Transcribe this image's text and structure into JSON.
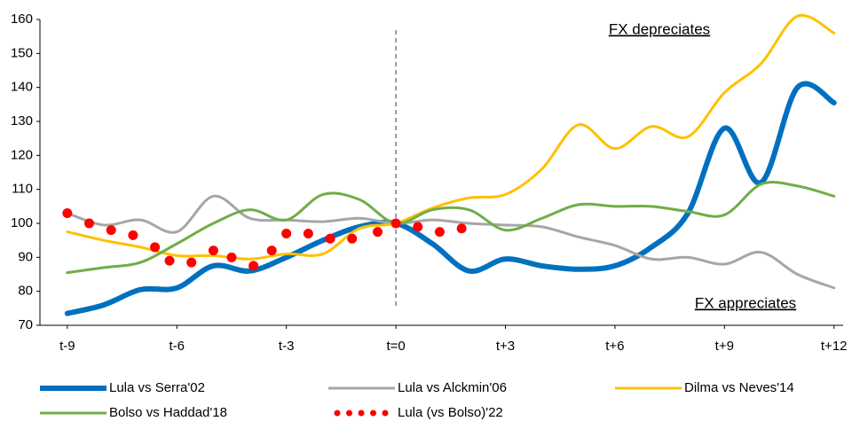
{
  "chart_data": {
    "type": "line",
    "x": [
      -9,
      -8,
      -7,
      -6,
      -5,
      -4,
      -3,
      -2,
      -1,
      0,
      1,
      2,
      3,
      4,
      5,
      6,
      7,
      8,
      9,
      10,
      11,
      12
    ],
    "xlim": [
      -9.75,
      12.25
    ],
    "xticks": [
      {
        "value": -9,
        "label": "t-9"
      },
      {
        "value": -6,
        "label": "t-6"
      },
      {
        "value": -3,
        "label": "t-3"
      },
      {
        "value": 0,
        "label": "t=0"
      },
      {
        "value": 3,
        "label": "t+3"
      },
      {
        "value": 6,
        "label": "t+6"
      },
      {
        "value": 9,
        "label": "t+9"
      },
      {
        "value": 12,
        "label": "t+12"
      }
    ],
    "ylim": [
      70,
      160
    ],
    "yticks": [
      70,
      80,
      90,
      100,
      110,
      120,
      130,
      140,
      150,
      160
    ],
    "vline": 0,
    "series": [
      {
        "name": "Lula vs Serra'02",
        "color": "#0070c0",
        "width": 6,
        "values": [
          73.5,
          76,
          80.5,
          81,
          87.5,
          86,
          90,
          95,
          99,
          100,
          94,
          86,
          89.5,
          87.5,
          86.5,
          87.5,
          93,
          103,
          128,
          112,
          140,
          135.5
        ]
      },
      {
        "name": "Lula vs Alckmin'06",
        "color": "#a6a6a6",
        "width": 3,
        "values": [
          103,
          99.5,
          101,
          97.5,
          108,
          101.5,
          101,
          100.5,
          101.5,
          100,
          101,
          100,
          99.5,
          99,
          96,
          93.5,
          89.5,
          90,
          88,
          91.5,
          85,
          81
        ]
      },
      {
        "name": "Dilma vs Neves'14",
        "color": "#ffc000",
        "width": 3,
        "values": [
          97.5,
          95,
          93,
          90.5,
          90.5,
          89.5,
          91,
          91,
          98.5,
          100,
          104.5,
          107.5,
          108.5,
          116,
          129,
          122,
          128.5,
          125.5,
          138.5,
          147,
          161,
          156
        ]
      },
      {
        "name": "Bolso vs Haddad'18",
        "color": "#70ad47",
        "width": 3,
        "values": [
          85.5,
          87,
          88.5,
          94,
          100,
          104,
          101,
          108.5,
          107,
          100,
          104,
          104,
          98,
          101.5,
          105.5,
          105,
          105,
          103.5,
          102.5,
          111.5,
          111,
          108
        ]
      },
      {
        "name": "Lula (vs Bolso)'22",
        "color": "#ff0000",
        "style": "dots",
        "x": [
          -9,
          -8.4,
          -7.8,
          -7.2,
          -6.6,
          -6.2,
          -5.6,
          -5,
          -4.5,
          -3.9,
          -3.4,
          -3,
          -2.4,
          -1.8,
          -1.2,
          -0.5,
          0,
          0.6,
          1.2,
          1.8
        ],
        "values": [
          103,
          100,
          98,
          96.5,
          93,
          89,
          88.5,
          92,
          90,
          87.5,
          92,
          97,
          97,
          95.5,
          95.5,
          97.5,
          100,
          99,
          97.5,
          98.5
        ]
      }
    ],
    "annotations": [
      {
        "text": "FX depreciates",
        "color": "#ff0000"
      },
      {
        "text": "FX appreciates",
        "color": "#00b050"
      }
    ]
  }
}
